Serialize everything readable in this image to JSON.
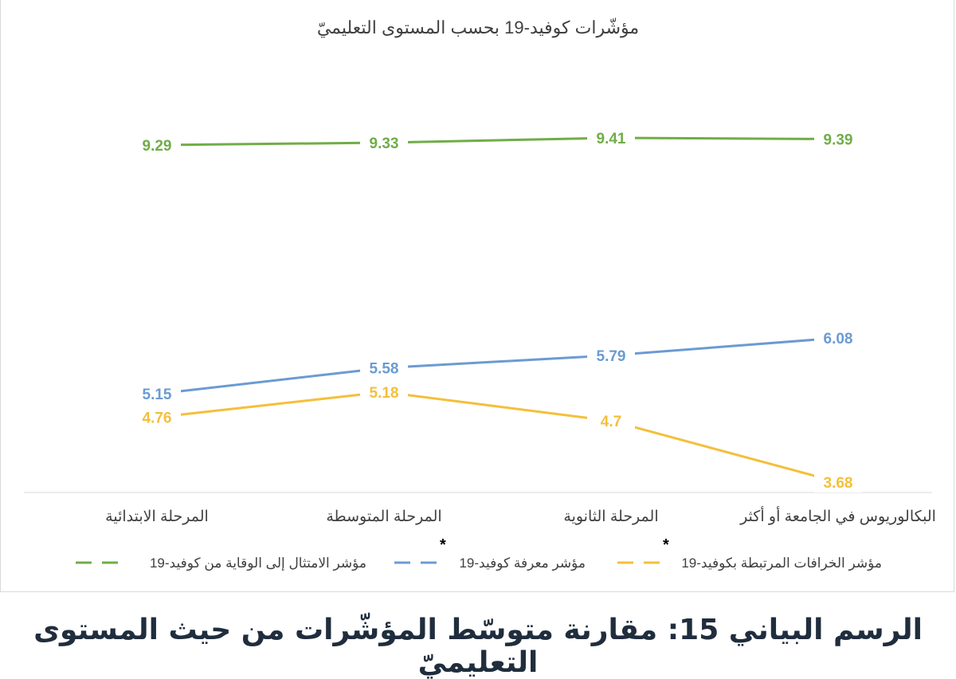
{
  "caption": "الرسم البياني 15: مقارنة متوسّط المؤشّرات من حيث المستوى التعليميّ",
  "chart_data": {
    "type": "line",
    "title": "مؤشّرات كوفيد-19 بحسب المستوى التعليميّ",
    "categories": [
      "المرحلة الابتدائية",
      "المرحلة المتوسطة",
      "المرحلة الثانوية",
      "البكالوريوس في الجامعة أو أكثر"
    ],
    "ylim": [
      3.0,
      10.0
    ],
    "grid": false,
    "legend_position": "bottom",
    "series": [
      {
        "name": "مؤشر الامتثال إلى الوقاية من كوفيد-19",
        "color": "#70ad47",
        "values": [
          9.29,
          9.33,
          9.41,
          9.39
        ],
        "labels": [
          "9.29",
          "9.33",
          "9.41",
          "9.39"
        ],
        "marker": ""
      },
      {
        "name": "مؤشر معرفة كوفيد-19",
        "color": "#6b9bd2",
        "values": [
          5.15,
          5.58,
          5.79,
          6.08
        ],
        "labels": [
          "5.15",
          "5.58",
          "5.79",
          "6.08"
        ],
        "marker": "*"
      },
      {
        "name": "مؤشر الخرافات المرتبطة بكوفيد-19",
        "color": "#f4bf3a",
        "values": [
          4.76,
          5.18,
          4.7,
          3.68
        ],
        "labels": [
          "4.76",
          "5.18",
          "4.7",
          "3.68"
        ],
        "marker": "*"
      }
    ]
  }
}
